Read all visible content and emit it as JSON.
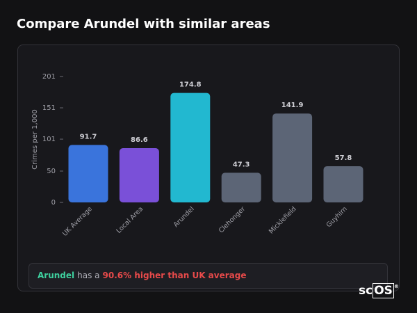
{
  "page_title": "Compare Arundel with similar areas",
  "chart_data": {
    "type": "bar",
    "ylabel": "Crimes per 1,000",
    "categories": [
      "UK Average",
      "Local Area",
      "Arundel",
      "Clehonger",
      "Micklefield",
      "Guyhirn"
    ],
    "values": [
      91.7,
      86.6,
      174.8,
      47.3,
      141.9,
      57.8
    ],
    "colors": [
      "#3a74dc",
      "#7a50d8",
      "#22b8d0",
      "#5c6576",
      "#5c6576",
      "#5c6576"
    ],
    "ylim": [
      0,
      201
    ],
    "yticks": [
      0,
      50,
      101,
      151,
      201
    ]
  },
  "note": {
    "area": "Arundel",
    "middle": "has a",
    "highlight": "90.6% higher than UK average"
  },
  "logo": {
    "part1": "sc",
    "part2": "OS",
    "mark": "®"
  }
}
